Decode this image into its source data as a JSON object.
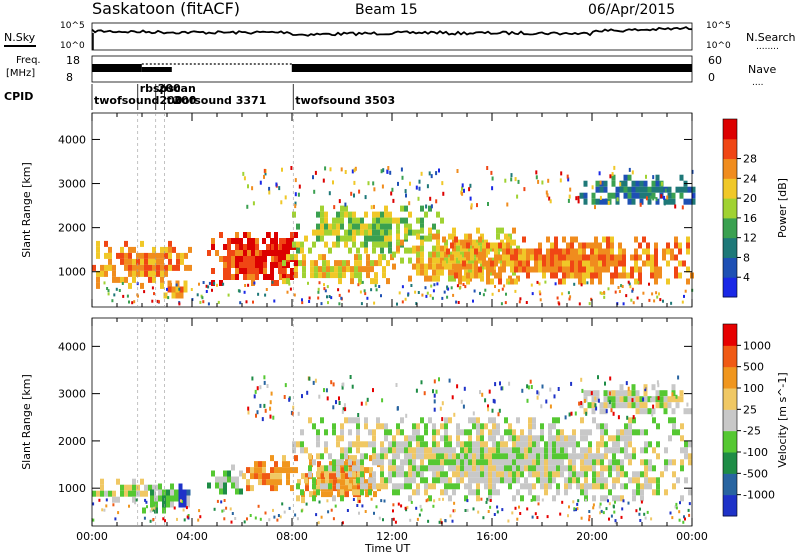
{
  "header": {
    "station": "Saskatoon (fitACF)",
    "beam": "Beam 15",
    "date": "06/Apr/2015"
  },
  "noise_panel": {
    "left_label": "N.Sky",
    "right_label": "N.Search",
    "right_legend": "........",
    "ticks": [
      "10^5",
      "10^0"
    ]
  },
  "freq_panel": {
    "label_top": "Freq.",
    "label_bottom": "[MHz]",
    "left_ticks": [
      "18",
      "8"
    ],
    "right_ticks": [
      "60",
      "0"
    ],
    "right_label": "Nave",
    "right_legend": "....",
    "solid_fraction_segments": [
      [
        0.0,
        0.083
      ],
      [
        0.333,
        1.0
      ]
    ]
  },
  "cpid": {
    "label": "CPID",
    "programs": [
      {
        "name": "twofsound",
        "start_hour": 0.0
      },
      {
        "name": "rbspscan",
        "start_hour": 1.83
      },
      {
        "name": "200",
        "start_hour": 2.55
      },
      {
        "name": "twofsound 3371",
        "start_hour": 2.9
      },
      {
        "name": "twofsound 3503",
        "start_hour": 8.05
      }
    ],
    "overlap_labels": [
      "200",
      "200"
    ]
  },
  "axes": {
    "ylabel": "Slant Range [km]",
    "xlabel": "Time UT",
    "y_ticks": [
      1000,
      2000,
      3000,
      4000
    ],
    "ylim": [
      200,
      4600
    ],
    "x_tick_labels": [
      "00:00",
      "04:00",
      "08:00",
      "12:00",
      "16:00",
      "20:00",
      "00:00"
    ],
    "xlim_hours": [
      0,
      24
    ]
  },
  "chart_data": [
    {
      "type": "heatmap",
      "title": "Power",
      "colorbar_label": "Power [dB]",
      "colorbar_ticks": [
        "4",
        "8",
        "12",
        "16",
        "20",
        "24",
        "28"
      ],
      "colors": [
        "#1a28e6",
        "#1e50b4",
        "#1e7878",
        "#3aa050",
        "#a0d232",
        "#f0c828",
        "#f08c1e",
        "#f04614",
        "#dc0000"
      ],
      "xlabel": "",
      "ylabel": "Slant Range [km]",
      "ylim": [
        200,
        4600
      ],
      "regions": [
        {
          "t0": 0.0,
          "t1": 3.9,
          "r0": 700,
          "r1": 1700,
          "level": 6
        },
        {
          "t0": 2.7,
          "t1": 3.9,
          "r0": 450,
          "r1": 800,
          "level": 6
        },
        {
          "t0": 4.6,
          "t1": 7.8,
          "r0": 800,
          "r1": 1900,
          "level": 7
        },
        {
          "t0": 6.8,
          "t1": 8.3,
          "r0": 850,
          "r1": 1900,
          "level": 8
        },
        {
          "t0": 7.6,
          "t1": 12.0,
          "r0": 800,
          "r1": 1400,
          "level": 5
        },
        {
          "t0": 8.0,
          "t1": 14.0,
          "r0": 1500,
          "r1": 2500,
          "level": 4
        },
        {
          "t0": 12.0,
          "t1": 17.0,
          "r0": 800,
          "r1": 2000,
          "level": 5
        },
        {
          "t0": 14.0,
          "t1": 24.0,
          "r0": 800,
          "r1": 1800,
          "level": 6
        },
        {
          "t0": 19.5,
          "t1": 24.0,
          "r0": 2600,
          "r1": 3200,
          "level": 2
        }
      ]
    },
    {
      "type": "heatmap",
      "title": "Velocity",
      "colorbar_label": "Velocity [m s^-1]",
      "colorbar_ticks": [
        "1000",
        "500",
        "100",
        "25",
        "-25",
        "-100",
        "-500",
        "-1000"
      ],
      "colors": [
        "#1e32c8",
        "#2864a0",
        "#1e8c46",
        "#55c832",
        "#c8c8c8",
        "#f0c864",
        "#f0961e",
        "#f05a14",
        "#e60000"
      ],
      "xlabel": "Time UT",
      "ylabel": "Slant Range [km]",
      "ylim": [
        200,
        4600
      ],
      "regions": [
        {
          "t0": 0.0,
          "t1": 2.7,
          "r0": 800,
          "r1": 1200,
          "level": 4
        },
        {
          "t0": 2.0,
          "t1": 3.8,
          "r0": 500,
          "r1": 1100,
          "level": 3
        },
        {
          "t0": 3.3,
          "t1": 3.9,
          "r0": 600,
          "r1": 1100,
          "level": 0
        },
        {
          "t0": 4.6,
          "t1": 5.9,
          "r0": 900,
          "r1": 1500,
          "level": 3
        },
        {
          "t0": 6.0,
          "t1": 8.2,
          "r0": 950,
          "r1": 1700,
          "level": 6
        },
        {
          "t0": 8.2,
          "t1": 11.5,
          "r0": 800,
          "r1": 1700,
          "level": 6
        },
        {
          "t0": 8.0,
          "t1": 24.0,
          "r0": 800,
          "r1": 2500,
          "level": 4
        },
        {
          "t0": 19.5,
          "t1": 24.0,
          "r0": 2600,
          "r1": 3200,
          "level": 4
        }
      ]
    }
  ]
}
